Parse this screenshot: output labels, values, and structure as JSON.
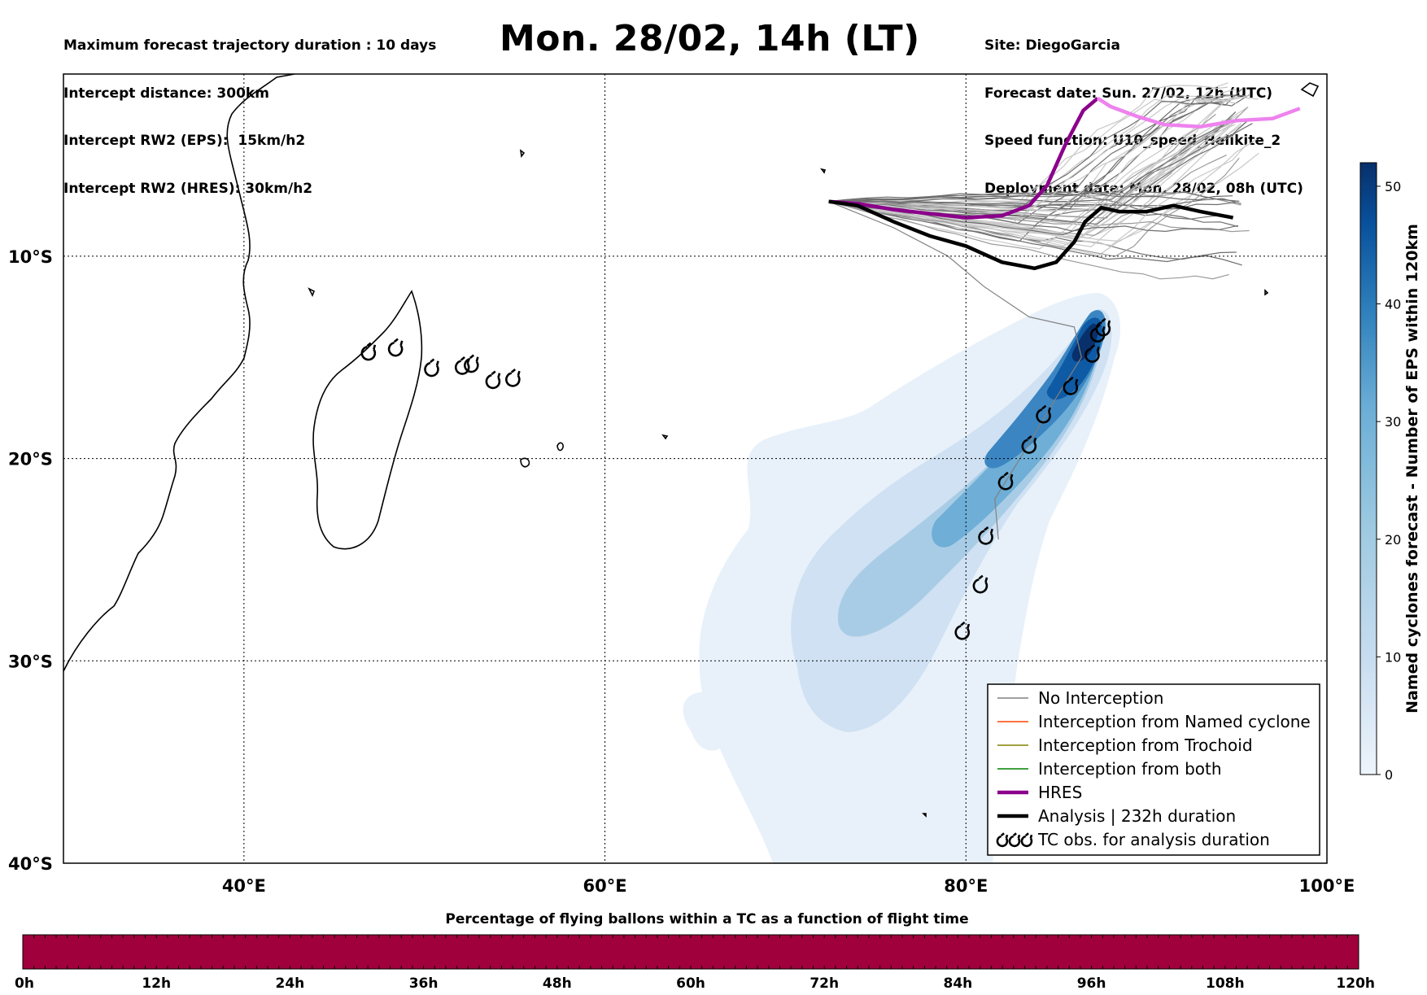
{
  "header": {
    "left": [
      "Maximum forecast trajectory duration : 10 days",
      "Intercept distance: 300km",
      "Intercept RW2 (EPS):  15km/h2",
      "Intercept RW2 (HRES): 30km/h2"
    ],
    "title": "Mon. 28/02, 14h (LT)",
    "right": [
      "Site: DiegoGarcia",
      "Forecast date: Sun. 27/02, 12h (UTC)",
      "Speed function: U10_speed_Helikite_2",
      "Deployment date: Mon. 28/02, 08h (UTC)"
    ]
  },
  "map": {
    "lon_range": [
      30,
      100
    ],
    "lat_range": [
      -40,
      -1
    ],
    "lon_ticks": [
      {
        "value": 40,
        "label": "40°E"
      },
      {
        "value": 60,
        "label": "60°E"
      },
      {
        "value": 80,
        "label": "80°E"
      },
      {
        "value": 100,
        "label": "100°E"
      }
    ],
    "lat_ticks": [
      {
        "value": -10,
        "label": "10°S"
      },
      {
        "value": -20,
        "label": "20°S"
      },
      {
        "value": -30,
        "label": "30°S"
      },
      {
        "value": -40,
        "label": "40°S"
      }
    ],
    "grid": "dotted",
    "site": {
      "name": "DiegoGarcia",
      "lon": 72.4,
      "lat": -7.3
    }
  },
  "legend": {
    "position": "lower-right",
    "items": [
      {
        "label": "No Interception",
        "color": "#808080",
        "style": "thin"
      },
      {
        "label": "Interception from Named cyclone",
        "color": "#ff4500",
        "style": "thin"
      },
      {
        "label": "Interception from Trochoid",
        "color": "#808000",
        "style": "thin"
      },
      {
        "label": "Interception from both",
        "color": "#008000",
        "style": "thin"
      },
      {
        "label": "HRES",
        "color": "#8b008b",
        "style": "thick"
      },
      {
        "label": "Analysis | 232h duration",
        "color": "#000000",
        "style": "thick"
      },
      {
        "label": "TC obs. for analysis duration",
        "color": "#000000",
        "style": "cyclone-symbols"
      }
    ]
  },
  "colorbar": {
    "label": "Named cyclones forecast - Number of EPS within 120km",
    "ticks": [
      "0",
      "10",
      "20",
      "30",
      "40",
      "50"
    ],
    "range": [
      0,
      52
    ],
    "colors": [
      "#e6eff9",
      "#c6dbef",
      "#9ecae1",
      "#6baed6",
      "#3182bd",
      "#08519c",
      "#08306b"
    ]
  },
  "timebar": {
    "title": "Percentage of flying ballons within a TC as a function of flight time",
    "ticks": [
      "0h",
      "12h",
      "24h",
      "36h",
      "48h",
      "60h",
      "72h",
      "84h",
      "96h",
      "108h",
      "120h"
    ],
    "color": "#a0003c"
  },
  "chart_data": {
    "type": "map",
    "hres_track": [
      [
        72.4,
        -7.3
      ],
      [
        74,
        -7.4
      ],
      [
        76,
        -7.7
      ],
      [
        78,
        -7.9
      ],
      [
        80,
        -8.1
      ],
      [
        82,
        -8.0
      ],
      [
        83.5,
        -7.5
      ],
      [
        84.5,
        -6.5
      ],
      [
        85.5,
        -4.5
      ],
      [
        86.5,
        -2.8
      ],
      [
        87.3,
        -2.2
      ],
      [
        88,
        -2.6
      ],
      [
        89.5,
        -3.1
      ],
      [
        91,
        -3.5
      ],
      [
        93,
        -3.6
      ],
      [
        95,
        -3.3
      ],
      [
        97,
        -3.2
      ],
      [
        98.5,
        -2.7
      ]
    ],
    "analysis_track": [
      [
        72.4,
        -7.3
      ],
      [
        74,
        -7.5
      ],
      [
        76,
        -8.3
      ],
      [
        78,
        -9.0
      ],
      [
        80,
        -9.5
      ],
      [
        82,
        -10.3
      ],
      [
        83.8,
        -10.6
      ],
      [
        85,
        -10.3
      ],
      [
        86,
        -9.3
      ],
      [
        86.6,
        -8.3
      ],
      [
        87.5,
        -7.6
      ],
      [
        88.5,
        -7.8
      ],
      [
        90,
        -7.8
      ],
      [
        91.5,
        -7.5
      ],
      [
        93,
        -7.8
      ],
      [
        94.8,
        -8.1
      ]
    ],
    "tc_obs": [
      [
        46.9,
        -14.8
      ],
      [
        48.4,
        -14.6
      ],
      [
        50.4,
        -15.6
      ],
      [
        52.1,
        -15.5
      ],
      [
        52.6,
        -15.4
      ],
      [
        53.8,
        -16.2
      ],
      [
        54.9,
        -16.1
      ],
      [
        79.8,
        -28.6
      ],
      [
        80.8,
        -26.3
      ],
      [
        81.1,
        -23.9
      ],
      [
        82.2,
        -21.2
      ],
      [
        83.5,
        -19.4
      ],
      [
        84.3,
        -17.9
      ],
      [
        85.8,
        -16.5
      ],
      [
        87,
        -14.9
      ],
      [
        87.3,
        -13.9
      ],
      [
        87.6,
        -13.6
      ]
    ],
    "density_max": 52
  }
}
